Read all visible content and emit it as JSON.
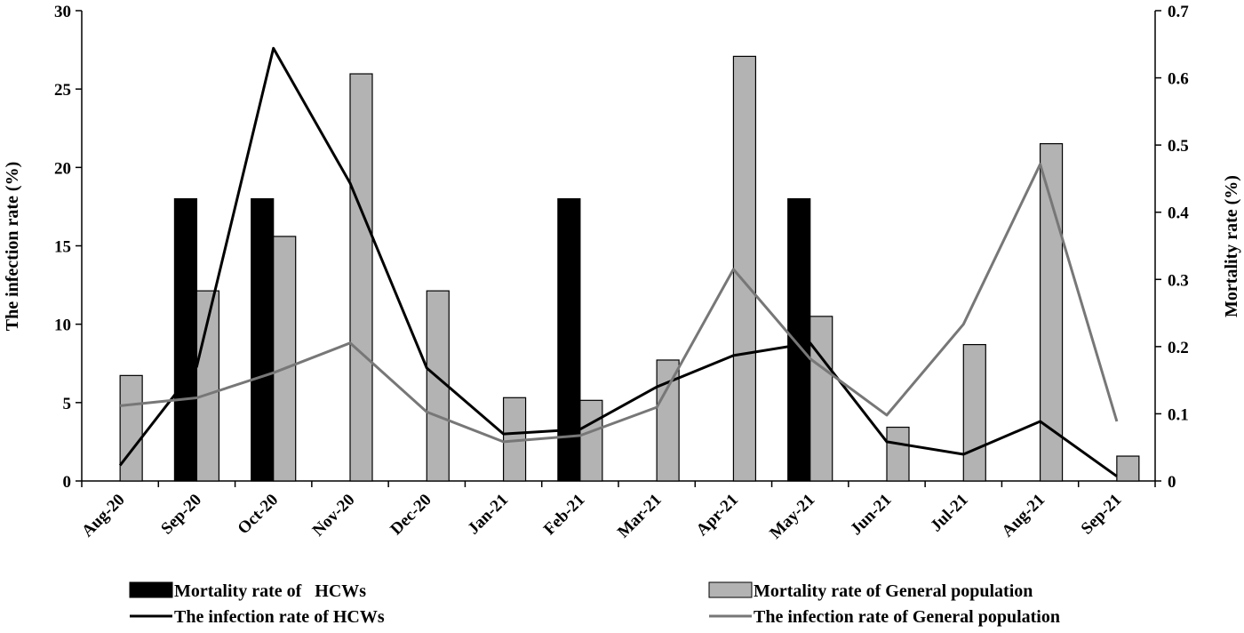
{
  "chart_data": {
    "type": "bar+line",
    "title": "",
    "categories": [
      "Aug-20",
      "Sep-20",
      "Oct-20",
      "Nov-20",
      "Dec-20",
      "Jan-21",
      "Feb-21",
      "Mar-21",
      "Apr-21",
      "May-21",
      "Jun-21",
      "Jul-21",
      "Aug-21",
      "Sep-21"
    ],
    "y_left": {
      "label": "The infection rate (%)",
      "min": 0,
      "max": 30,
      "ticks": [
        "0",
        "5",
        "10",
        "15",
        "20",
        "25",
        "30"
      ]
    },
    "y_right": {
      "label": "Mortality rate (%)",
      "min": 0,
      "max": 0.7,
      "ticks": [
        "0",
        "0.1",
        "0.2",
        "0.3",
        "0.4",
        "0.5",
        "0.6",
        "0.7"
      ]
    },
    "bar_series": [
      {
        "name": "Mortality rate of   HCWs",
        "axis": "right",
        "color": "#000000",
        "values": [
          0,
          0.42,
          0.42,
          0,
          0,
          0,
          0.42,
          0,
          0,
          0.42,
          0,
          0,
          0,
          0
        ]
      },
      {
        "name": "Mortality rate of General population",
        "axis": "right",
        "color": "#b3b3b3",
        "values": [
          0.157,
          0.283,
          0.364,
          0.606,
          0.283,
          0.124,
          0.12,
          0.18,
          0.632,
          0.245,
          0.08,
          0.203,
          0.502,
          0.037
        ]
      }
    ],
    "line_series": [
      {
        "name": "The infection rate of HCWs",
        "axis": "left",
        "color": "#000000",
        "values": [
          1.0,
          7.3,
          27.6,
          19.0,
          7.2,
          3.0,
          3.3,
          6.0,
          8.0,
          8.8,
          2.5,
          1.7,
          3.8,
          0.3
        ]
      },
      {
        "name": "The infection rate of General population",
        "axis": "left",
        "color": "#777777",
        "values": [
          4.8,
          5.3,
          6.9,
          8.8,
          4.4,
          2.5,
          2.9,
          4.7,
          13.5,
          7.8,
          4.2,
          10.0,
          20.2,
          3.8
        ]
      }
    ],
    "legend_position": "bottom"
  }
}
